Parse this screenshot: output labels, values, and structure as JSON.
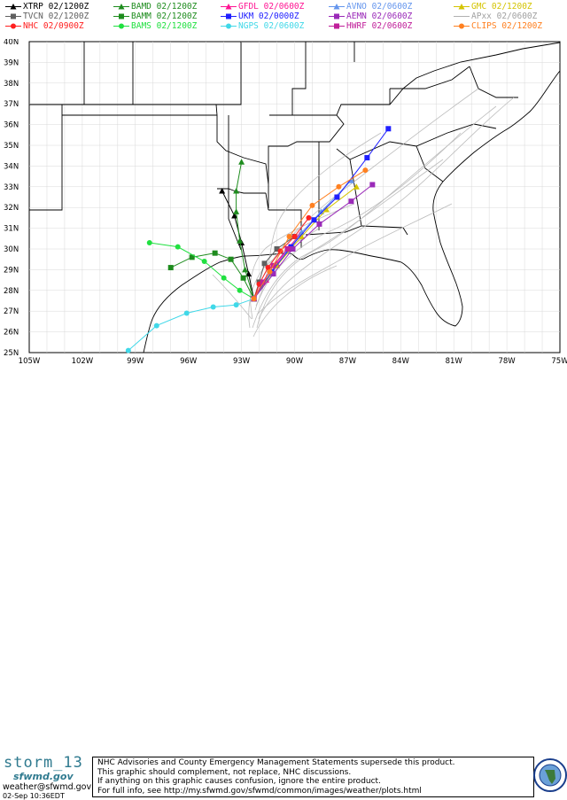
{
  "legend": [
    {
      "label": "XTRP  02/1200Z",
      "color": "#000000",
      "marker": "triangle"
    },
    {
      "label": "BAMD 02/1200Z",
      "color": "#1e8c1e",
      "marker": "triangle"
    },
    {
      "label": "GFDL  02/0600Z",
      "color": "#ff1493",
      "marker": "triangle"
    },
    {
      "label": "AVNO 02/0600Z",
      "color": "#6495ed",
      "marker": "triangle"
    },
    {
      "label": "GMC  02/1200Z",
      "color": "#d4c400",
      "marker": "triangle"
    },
    {
      "label": "TVCN  02/1200Z",
      "color": "#606060",
      "marker": "square"
    },
    {
      "label": "BAMM 02/1200Z",
      "color": "#1e8c1e",
      "marker": "square"
    },
    {
      "label": "UKM  02/0000Z",
      "color": "#2020ff",
      "marker": "square"
    },
    {
      "label": "AEMN  02/0600Z",
      "color": "#9a2ab8",
      "marker": "square"
    },
    {
      "label": "APxx  02/0600Z",
      "color": "#b0b0b0",
      "marker": "none"
    },
    {
      "label": "NHC  02/0900Z",
      "color": "#ff2020",
      "marker": "circle"
    },
    {
      "label": "BAMS 02/1200Z",
      "color": "#20e040",
      "marker": "circle"
    },
    {
      "label": "NGPS  02/0600Z",
      "color": "#40d8e8",
      "marker": "circle"
    },
    {
      "label": "HWRF  02/0600Z",
      "color": "#c0209a",
      "marker": "square"
    },
    {
      "label": "CLIPS 02/1200Z",
      "color": "#ff8020",
      "marker": "circle"
    }
  ],
  "map": {
    "lat_labels": [
      "40N",
      "39N",
      "38N",
      "37N",
      "36N",
      "35N",
      "34N",
      "33N",
      "32N",
      "31N",
      "30N",
      "29N",
      "28N",
      "27N",
      "26N",
      "25N"
    ],
    "lon_labels": [
      "105W",
      "102W",
      "99W",
      "96W",
      "93W",
      "90W",
      "87W",
      "84W",
      "81W",
      "78W",
      "75W"
    ],
    "lat_range": [
      25,
      40
    ],
    "lon_range": [
      -105,
      -75
    ]
  },
  "tracks": [
    {
      "model": "XTRP",
      "color": "#000000",
      "marker": "triangle",
      "points": [
        [
          -92.3,
          27.6
        ],
        [
          -92.6,
          28.8
        ],
        [
          -93.0,
          30.3
        ],
        [
          -93.4,
          31.6
        ],
        [
          -94.1,
          32.8
        ]
      ]
    },
    {
      "model": "BAMD",
      "color": "#1e8c1e",
      "marker": "triangle",
      "points": [
        [
          -92.3,
          27.6
        ],
        [
          -92.8,
          29.0
        ],
        [
          -93.1,
          30.4
        ],
        [
          -93.3,
          31.8
        ],
        [
          -93.3,
          32.8
        ],
        [
          -93.0,
          34.2
        ]
      ]
    },
    {
      "model": "GFDL",
      "color": "#ff1493",
      "marker": "triangle",
      "points": [
        [
          -92.3,
          27.6
        ],
        [
          -91.6,
          28.5
        ],
        [
          -91.0,
          29.3
        ],
        [
          -90.3,
          30.1
        ],
        [
          -89.7,
          30.7
        ]
      ]
    },
    {
      "model": "AVNO",
      "color": "#6495ed",
      "marker": "triangle",
      "points": [
        [
          -92.3,
          27.6
        ],
        [
          -91.3,
          28.8
        ],
        [
          -90.4,
          29.9
        ],
        [
          -89.6,
          30.8
        ],
        [
          -88.5,
          31.8
        ],
        [
          -86.8,
          33.3
        ]
      ]
    },
    {
      "model": "GMC",
      "color": "#d4c400",
      "marker": "triangle",
      "points": [
        [
          -92.3,
          27.6
        ],
        [
          -91.0,
          29.2
        ],
        [
          -89.6,
          30.6
        ],
        [
          -88.2,
          31.9
        ],
        [
          -86.5,
          33.0
        ]
      ]
    },
    {
      "model": "TVCN",
      "color": "#606060",
      "marker": "square",
      "points": [
        [
          -92.3,
          27.6
        ],
        [
          -92.0,
          28.4
        ],
        [
          -91.7,
          29.3
        ],
        [
          -91.0,
          30.0
        ],
        [
          -90.0,
          30.6
        ]
      ]
    },
    {
      "model": "BAMM",
      "color": "#1e8c1e",
      "marker": "square",
      "points": [
        [
          -92.3,
          27.6
        ],
        [
          -92.9,
          28.6
        ],
        [
          -93.6,
          29.5
        ],
        [
          -94.5,
          29.8
        ],
        [
          -95.8,
          29.6
        ],
        [
          -97.0,
          29.1
        ]
      ]
    },
    {
      "model": "UKM",
      "color": "#2020ff",
      "marker": "square",
      "points": [
        [
          -92.3,
          27.6
        ],
        [
          -91.3,
          28.9
        ],
        [
          -90.2,
          30.1
        ],
        [
          -88.9,
          31.4
        ],
        [
          -87.6,
          32.5
        ],
        [
          -85.9,
          34.4
        ],
        [
          -84.7,
          35.8
        ]
      ]
    },
    {
      "model": "AEMN",
      "color": "#9a2ab8",
      "marker": "square",
      "points": [
        [
          -92.3,
          27.6
        ],
        [
          -91.2,
          28.8
        ],
        [
          -90.1,
          30.0
        ],
        [
          -88.6,
          31.2
        ],
        [
          -86.8,
          32.3
        ],
        [
          -85.6,
          33.1
        ]
      ]
    },
    {
      "model": "NHC",
      "color": "#ff2020",
      "marker": "circle",
      "points": [
        [
          -92.3,
          27.6
        ],
        [
          -92.0,
          28.3
        ],
        [
          -91.5,
          29.1
        ],
        [
          -90.8,
          29.9
        ],
        [
          -90.0,
          30.6
        ],
        [
          -89.2,
          31.5
        ]
      ]
    },
    {
      "model": "BAMS",
      "color": "#20e040",
      "marker": "circle",
      "points": [
        [
          -92.3,
          27.6
        ],
        [
          -93.1,
          28.0
        ],
        [
          -94.0,
          28.6
        ],
        [
          -95.1,
          29.4
        ],
        [
          -96.6,
          30.1
        ],
        [
          -98.2,
          30.3
        ]
      ]
    },
    {
      "model": "NGPS",
      "color": "#40d8e8",
      "marker": "circle",
      "points": [
        [
          -92.3,
          27.6
        ],
        [
          -93.3,
          27.3
        ],
        [
          -94.6,
          27.2
        ],
        [
          -96.1,
          26.9
        ],
        [
          -97.8,
          26.3
        ],
        [
          -99.4,
          25.1
        ]
      ]
    },
    {
      "model": "HWRF",
      "color": "#c0209a",
      "marker": "square",
      "points": [
        [
          -92.3,
          27.6
        ],
        [
          -91.8,
          28.4
        ],
        [
          -91.2,
          29.2
        ],
        [
          -90.4,
          30.0
        ]
      ]
    },
    {
      "model": "CLIPS",
      "color": "#ff8020",
      "marker": "circle",
      "points": [
        [
          -92.3,
          27.6
        ],
        [
          -91.4,
          28.9
        ],
        [
          -90.3,
          30.6
        ],
        [
          -89.0,
          32.1
        ],
        [
          -87.5,
          33.0
        ],
        [
          -86.0,
          33.8
        ]
      ]
    }
  ],
  "footer": {
    "storm": "storm_13",
    "site": "sfwmd.gov",
    "email": "weather@sfwmd.gov",
    "timestamp": "02-Sep 10:36EDT",
    "disclaimer": [
      "NHC Advisories and County Emergency Management Statements supersede this product.",
      "This graphic should complement, not replace, NHC discussions.",
      "If anything on this graphic causes confusion, ignore the entire product.",
      "For full info, see  http://my.sfwmd.gov/sfwmd/common/images/weather/plots.html"
    ]
  }
}
